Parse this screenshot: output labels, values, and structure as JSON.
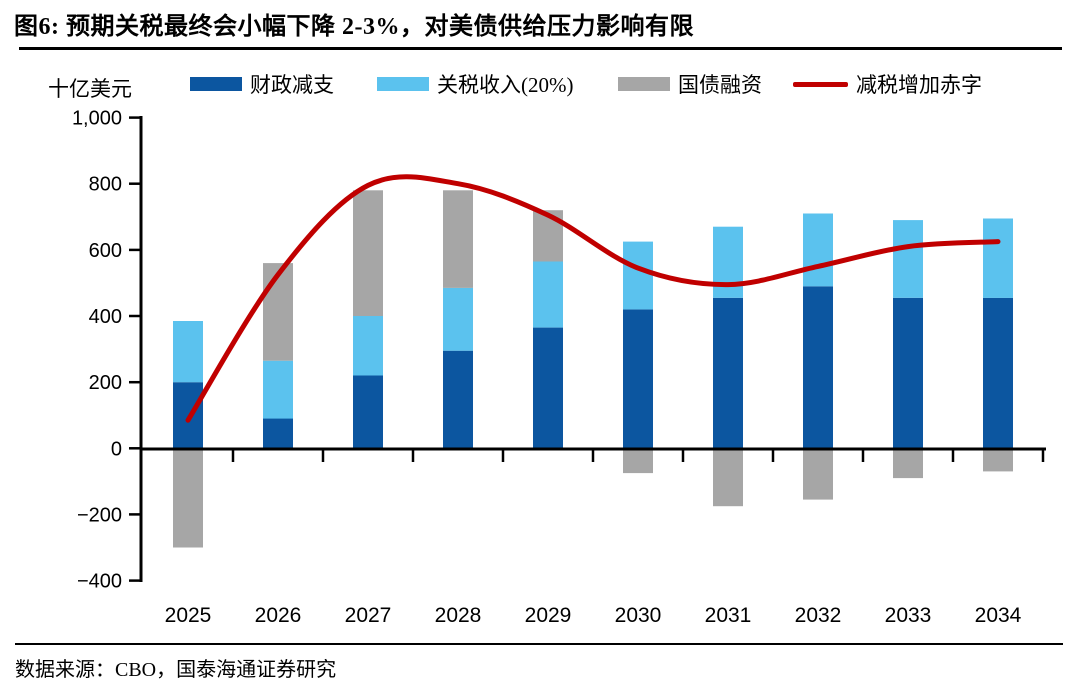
{
  "figure": {
    "title": "图6: 预期关税最终会小幅下降 2-3%，对美债供给压力影响有限",
    "source": "数据来源：CBO，国泰海通证券研究"
  },
  "chart_data": {
    "type": "bar",
    "stacked": true,
    "unit_label": "十亿美元",
    "categories": [
      "2025",
      "2026",
      "2027",
      "2028",
      "2029",
      "2030",
      "2031",
      "2032",
      "2033",
      "2034"
    ],
    "series": [
      {
        "name": "财政减支",
        "key": "fiscal-cut",
        "type": "bar",
        "color": "#0C56A0",
        "values": [
          200,
          90,
          220,
          295,
          365,
          420,
          455,
          490,
          455,
          455
        ]
      },
      {
        "name": "关税收入(20%)",
        "key": "tariff-revenue",
        "type": "bar",
        "color": "#5BC2EE",
        "values": [
          185,
          175,
          180,
          190,
          200,
          205,
          215,
          220,
          235,
          240
        ]
      },
      {
        "name": "国债融资",
        "key": "treasury-financing",
        "type": "bar",
        "color": "#A6A6A6",
        "values": [
          -300,
          295,
          380,
          295,
          155,
          -75,
          -175,
          -155,
          -90,
          -70
        ]
      },
      {
        "name": "减税增加赤字",
        "key": "deficit-from-tax-cut",
        "type": "line",
        "color": "#C00000",
        "values": [
          85,
          525,
          795,
          800,
          705,
          545,
          495,
          550,
          610,
          625
        ]
      }
    ],
    "ylim": [
      -400,
      1000
    ],
    "ytick_step": 200,
    "yticks": [
      {
        "label": "1,000",
        "value": 1000
      },
      {
        "label": "800",
        "value": 800
      },
      {
        "label": "600",
        "value": 600
      },
      {
        "label": "400",
        "value": 400
      },
      {
        "label": "200",
        "value": 200
      },
      {
        "label": "0",
        "value": 0
      },
      {
        "label": "−200",
        "value": -200
      },
      {
        "label": "−400",
        "value": -400
      }
    ],
    "grid": false,
    "legend_position": "top"
  }
}
